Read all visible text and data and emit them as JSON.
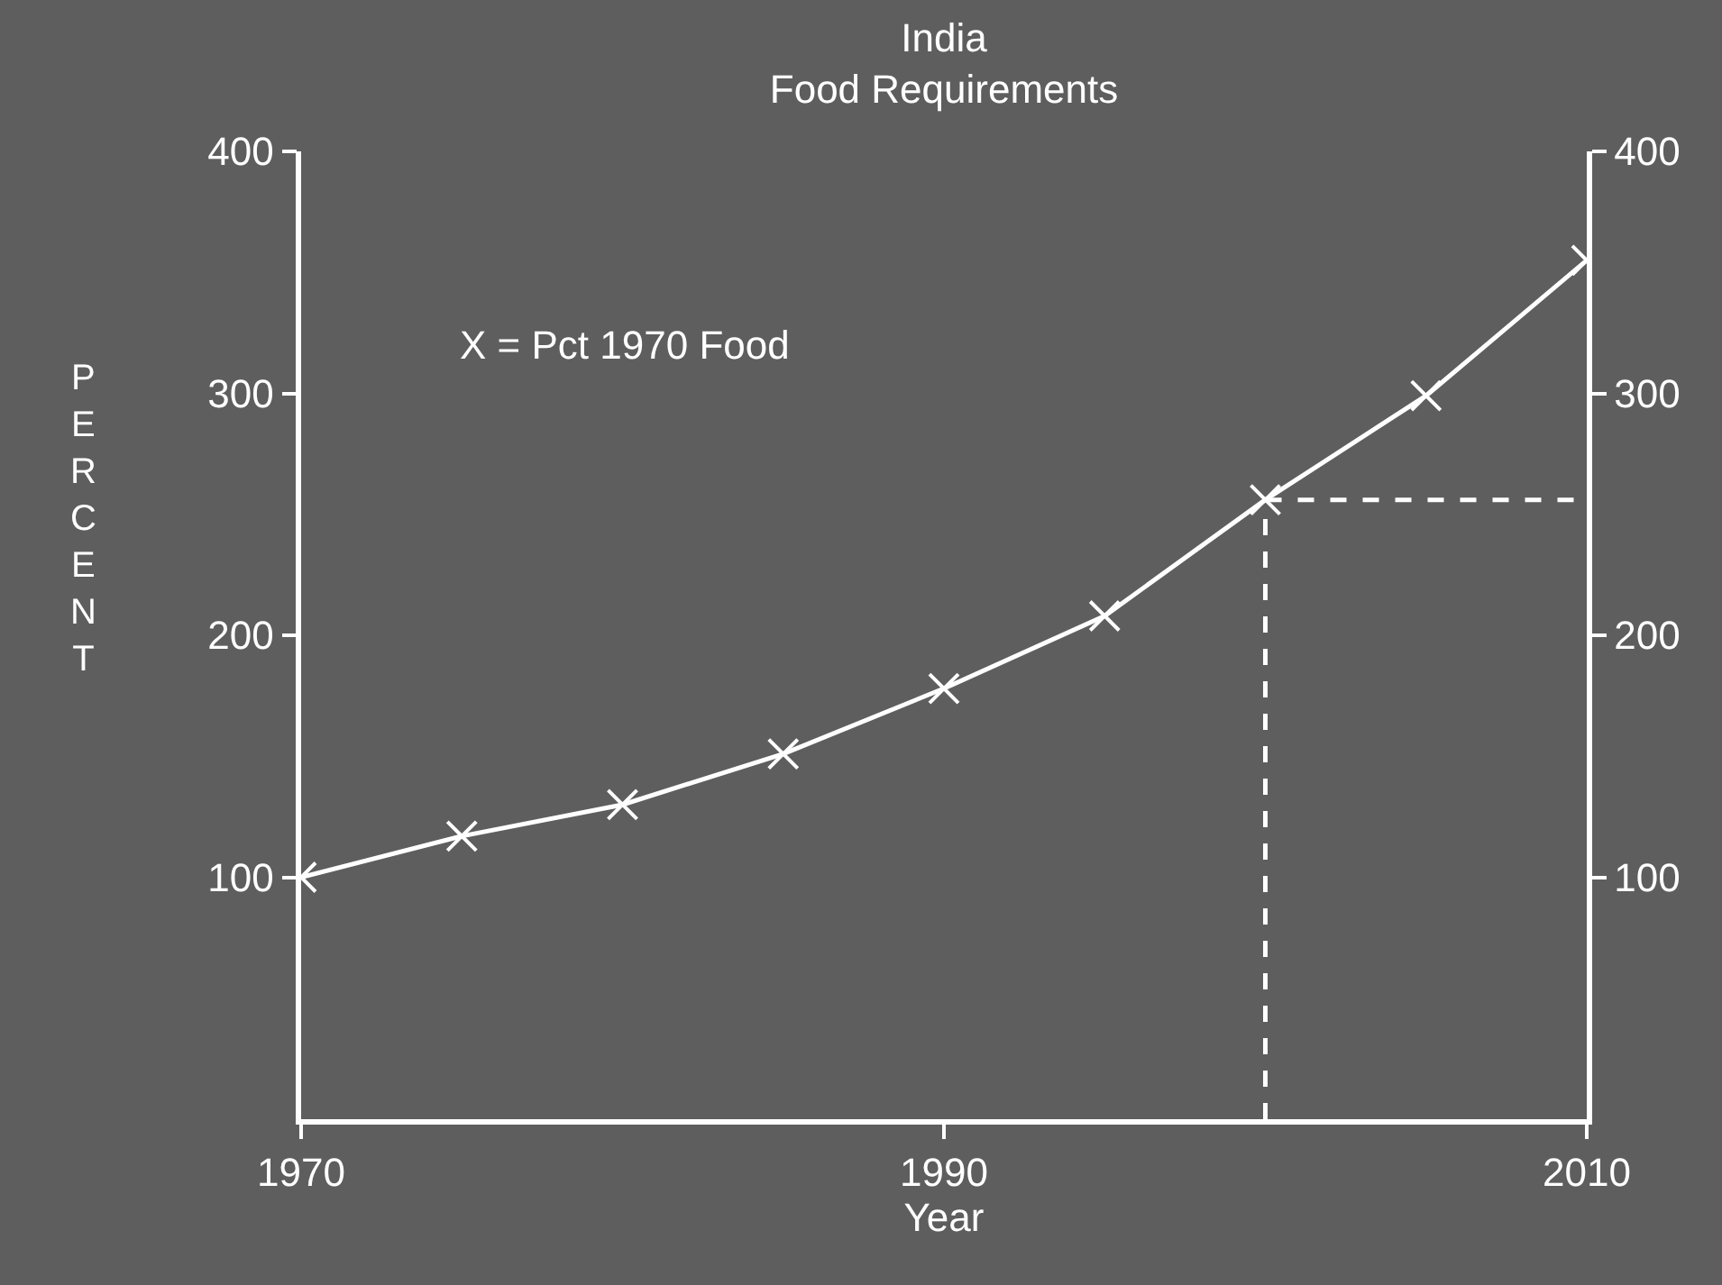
{
  "chart_data": {
    "type": "line",
    "title": "India\nFood Requirements",
    "xlabel": "Year",
    "ylabel": "PERCENT",
    "annotations": [
      "X = Pct 1970 Food"
    ],
    "x": [
      1970,
      1975,
      1980,
      1985,
      1990,
      1995,
      2000,
      2005,
      2010
    ],
    "series": [
      {
        "color": "#ffffff",
        "marker": "cross",
        "values": [
          100,
          117,
          130,
          151,
          178,
          208,
          256,
          299,
          355
        ]
      }
    ],
    "ref_lines": [
      {
        "axis": "x",
        "value": 2000,
        "color": "#ffffff",
        "line_style": "dashed"
      },
      {
        "axis": "y",
        "value": 256,
        "color": "#ffffff",
        "line_style": "dashed"
      }
    ],
    "xlim": [
      1970,
      2010
    ],
    "xticks": [
      1970,
      1990,
      2010
    ],
    "ylim": [
      0,
      400
    ],
    "yticks": [
      100,
      200,
      300,
      400
    ],
    "y2lim": [
      0,
      400
    ],
    "y2ticks": [
      100,
      200,
      300,
      400
    ]
  }
}
